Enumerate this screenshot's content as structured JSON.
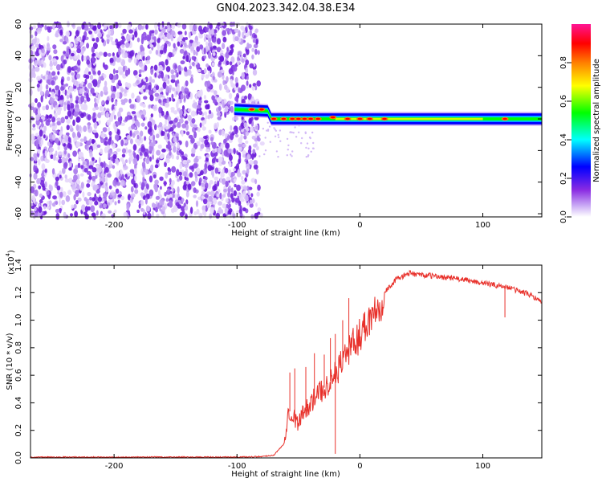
{
  "title": "GN04.2023.342.04.38.E34",
  "chart_data": [
    {
      "type": "heatmap",
      "xlabel": "Height of straight line (km)",
      "ylabel": "Frequency (Hz)",
      "xlim": [
        -268,
        148
      ],
      "ylim": [
        -62,
        60
      ],
      "xticks": [
        -200,
        -100,
        0,
        100
      ],
      "yticks": [
        -60,
        -40,
        -20,
        0,
        20,
        40,
        60
      ],
      "noise_region_x": [
        -268,
        -82
      ],
      "signal_band": {
        "x_start": -102,
        "x_end": 148,
        "center_freq_hz": [
          {
            "x": -102,
            "y": 6
          },
          {
            "x": -75,
            "y": 5
          },
          {
            "x": -72,
            "y": 0
          },
          {
            "x": 148,
            "y": 0
          }
        ],
        "half_width_hz": 3.5
      },
      "peak_points": [
        {
          "x": -88,
          "y": 6
        },
        {
          "x": -80,
          "y": 6
        },
        {
          "x": -70,
          "y": 0
        },
        {
          "x": -62,
          "y": 0
        },
        {
          "x": -55,
          "y": 0
        },
        {
          "x": -50,
          "y": 0
        },
        {
          "x": -45,
          "y": 0
        },
        {
          "x": -40,
          "y": 0
        },
        {
          "x": -34,
          "y": 0
        },
        {
          "x": -22,
          "y": 1
        },
        {
          "x": -10,
          "y": 0
        },
        {
          "x": 0,
          "y": 0
        },
        {
          "x": 8,
          "y": 0
        },
        {
          "x": 20,
          "y": 0
        },
        {
          "x": 118,
          "y": 0
        }
      ],
      "colorbar": {
        "label": "Normalized spectral amplitude",
        "ticks": [
          "0.0",
          "0.2",
          "0.4",
          "0.6",
          "0.8"
        ],
        "range": [
          0,
          1
        ]
      },
      "colors": [
        "#ffffff",
        "#8a2be2",
        "#0000ff",
        "#00ffff",
        "#00ff00",
        "#ffff00",
        "#ff7f00",
        "#ff0000",
        "#ff1493"
      ]
    },
    {
      "type": "line",
      "xlabel": "Height of straight line (km)",
      "ylabel": "SNR (10 * v/v)",
      "y_multiplier": "(x10",
      "y_multiplier_exp": "4",
      "y_multiplier_close": ")",
      "xlim": [
        -268,
        148
      ],
      "ylim": [
        0,
        1.4
      ],
      "xticks": [
        -200,
        -100,
        0,
        100
      ],
      "yticks": [
        "0.0",
        "0.2",
        "0.4",
        "0.6",
        "0.8",
        "1.0",
        "1.2",
        "1.4"
      ],
      "color": "#e8302a",
      "series": [
        {
          "x": [
            -268,
            -240,
            -200,
            -160,
            -120,
            -100,
            -80,
            -70,
            -62,
            -58,
            -54,
            -50,
            -45,
            -40,
            -35,
            -30,
            -25,
            -20,
            -15,
            -10,
            -5,
            0,
            10,
            20,
            30,
            40,
            50,
            60,
            80,
            100,
            120,
            140,
            148
          ],
          "y": [
            0.005,
            0.006,
            0.005,
            0.006,
            0.006,
            0.006,
            0.01,
            0.02,
            0.1,
            0.35,
            0.3,
            0.25,
            0.35,
            0.4,
            0.45,
            0.5,
            0.55,
            0.6,
            0.7,
            0.78,
            0.82,
            0.9,
            1.05,
            1.2,
            1.3,
            1.34,
            1.33,
            1.32,
            1.3,
            1.27,
            1.24,
            1.18,
            1.13
          ]
        }
      ],
      "spikes": [
        {
          "x": -57,
          "y": 0.62
        },
        {
          "x": -53,
          "y": 0.65
        },
        {
          "x": -44,
          "y": 0.66
        },
        {
          "x": -37,
          "y": 0.76
        },
        {
          "x": -29,
          "y": 0.75
        },
        {
          "x": -24,
          "y": 0.87
        },
        {
          "x": -20,
          "y": 0.9
        },
        {
          "x": -14,
          "y": 1.0
        },
        {
          "x": -9,
          "y": 1.16
        },
        {
          "x": -20,
          "y": 0.03
        },
        {
          "x": 118,
          "y": 1.02
        }
      ]
    }
  ]
}
